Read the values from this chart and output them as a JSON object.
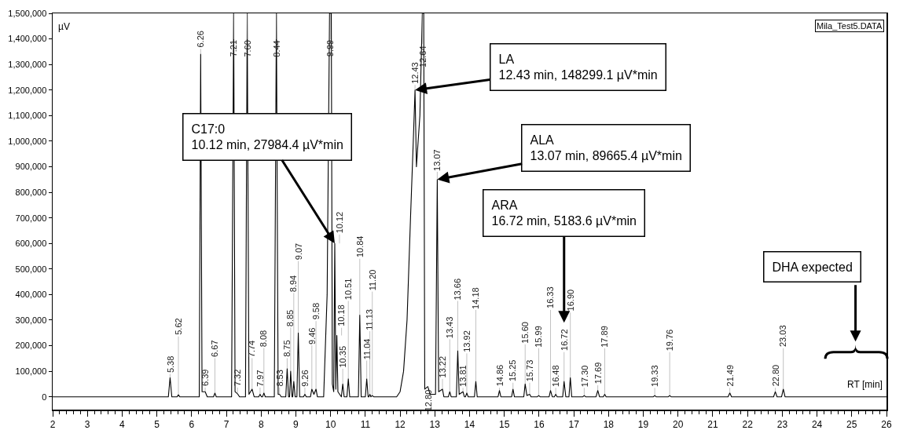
{
  "chart_data": {
    "type": "line",
    "xlabel": "RT [min]",
    "ylabel": "µV",
    "annotations": [
      "Mila_Test5.DATA",
      {
        "text": "C17:0\n10.12 min, 27984.4 µV*min",
        "x": 10.12,
        "y": 600000
      },
      {
        "text": "LA\n12.43 min, 148299.1 µV*min",
        "x": 12.43,
        "y": 1200000
      },
      {
        "text": "ALA\n13.07 min, 89665.4 µV*min",
        "x": 13.07,
        "y": 850000
      },
      {
        "text": "ARA\n16.72 min, 5183.6 µV*min",
        "x": 16.72,
        "y": 60000
      },
      "DHA expected",
      {
        "text": "5.38",
        "x": 5.38,
        "y": 75000
      },
      {
        "text": "5.62",
        "x": 5.62,
        "y": 8000
      },
      {
        "text": "6.26",
        "x": 6.26,
        "y": 1340000
      },
      {
        "text": "6.39",
        "x": 6.39,
        "y": 20000
      },
      {
        "text": "6.67",
        "x": 6.67,
        "y": 15000
      },
      {
        "text": "7.21",
        "x": 7.21,
        "y": 1500000
      },
      {
        "text": "7.32",
        "x": 7.32,
        "y": 12000
      },
      {
        "text": "7.60",
        "x": 7.6,
        "y": 1500000
      },
      {
        "text": "7.74",
        "x": 7.74,
        "y": 30000
      },
      {
        "text": "7.97",
        "x": 7.97,
        "y": 10000
      },
      {
        "text": "8.08",
        "x": 8.08,
        "y": 15000
      },
      {
        "text": "8.44",
        "x": 8.44,
        "y": 1500000
      },
      {
        "text": "8.53",
        "x": 8.53,
        "y": 10000
      },
      {
        "text": "8.75",
        "x": 8.75,
        "y": 110000
      },
      {
        "text": "8.85",
        "x": 8.85,
        "y": 100000
      },
      {
        "text": "8.94",
        "x": 8.94,
        "y": 60000
      },
      {
        "text": "9.07",
        "x": 9.07,
        "y": 250000
      },
      {
        "text": "9.26",
        "x": 9.26,
        "y": 10000
      },
      {
        "text": "9.46",
        "x": 9.46,
        "y": 30000
      },
      {
        "text": "9.58",
        "x": 9.58,
        "y": 30000
      },
      {
        "text": "9.99",
        "x": 9.99,
        "y": 1500000
      },
      {
        "text": "10.12",
        "x": 10.12,
        "y": 600000
      },
      {
        "text": "10.18",
        "x": 10.18,
        "y": 240000
      },
      {
        "text": "10.35",
        "x": 10.35,
        "y": 50000
      },
      {
        "text": "10.51",
        "x": 10.51,
        "y": 70000
      },
      {
        "text": "10.84",
        "x": 10.84,
        "y": 320000
      },
      {
        "text": "11.04",
        "x": 11.04,
        "y": 70000
      },
      {
        "text": "11.13",
        "x": 11.13,
        "y": 10000
      },
      {
        "text": "11.20",
        "x": 11.2,
        "y": 5000
      },
      {
        "text": "12.43",
        "x": 12.43,
        "y": 1200000
      },
      {
        "text": "12.64",
        "x": 12.64,
        "y": 1500000
      },
      {
        "text": "12.80",
        "x": 12.8,
        "y": 40000
      },
      {
        "text": "13.07",
        "x": 13.07,
        "y": 850000
      },
      {
        "text": "13.22",
        "x": 13.22,
        "y": 30000
      },
      {
        "text": "13.43",
        "x": 13.43,
        "y": 20000
      },
      {
        "text": "13.66",
        "x": 13.66,
        "y": 180000
      },
      {
        "text": "13.81",
        "x": 13.81,
        "y": 20000
      },
      {
        "text": "13.92",
        "x": 13.92,
        "y": 15000
      },
      {
        "text": "14.18",
        "x": 14.18,
        "y": 60000
      },
      {
        "text": "14.86",
        "x": 14.86,
        "y": 25000
      },
      {
        "text": "15.25",
        "x": 15.25,
        "y": 30000
      },
      {
        "text": "15.60",
        "x": 15.6,
        "y": 50000
      },
      {
        "text": "15.73",
        "x": 15.73,
        "y": 10000
      },
      {
        "text": "15.99",
        "x": 15.99,
        "y": 5000
      },
      {
        "text": "16.33",
        "x": 16.33,
        "y": 25000
      },
      {
        "text": "16.48",
        "x": 16.48,
        "y": 10000
      },
      {
        "text": "16.72",
        "x": 16.72,
        "y": 60000
      },
      {
        "text": "16.90",
        "x": 16.9,
        "y": 75000
      },
      {
        "text": "17.30",
        "x": 17.3,
        "y": 5000
      },
      {
        "text": "17.69",
        "x": 17.69,
        "y": 25000
      },
      {
        "text": "17.89",
        "x": 17.89,
        "y": 10000
      },
      {
        "text": "19.33",
        "x": 19.33,
        "y": 5000
      },
      {
        "text": "19.76",
        "x": 19.76,
        "y": 5000
      },
      {
        "text": "21.49",
        "x": 21.49,
        "y": 15000
      },
      {
        "text": "22.80",
        "x": 22.8,
        "y": 20000
      },
      {
        "text": "23.03",
        "x": 23.03,
        "y": 30000
      }
    ],
    "x": [
      2,
      5.33,
      5.38,
      5.43,
      5.58,
      5.62,
      5.66,
      6.22,
      6.26,
      6.3,
      6.39,
      6.45,
      6.63,
      6.67,
      6.71,
      7.15,
      7.21,
      7.25,
      7.32,
      7.38,
      7.55,
      7.6,
      7.65,
      7.74,
      7.8,
      7.93,
      7.97,
      8.01,
      8.04,
      8.08,
      8.12,
      8.38,
      8.44,
      8.49,
      8.53,
      8.58,
      8.71,
      8.75,
      8.79,
      8.82,
      8.85,
      8.89,
      8.91,
      8.94,
      8.98,
      9.03,
      9.07,
      9.11,
      9.22,
      9.26,
      9.3,
      9.42,
      9.46,
      9.52,
      9.58,
      9.62,
      9.8,
      9.9,
      9.97,
      9.99,
      10.02,
      10.05,
      10.09,
      10.12,
      10.15,
      10.18,
      10.21,
      10.31,
      10.35,
      10.39,
      10.47,
      10.51,
      10.55,
      10.8,
      10.84,
      10.88,
      11,
      11.04,
      11.08,
      11.1,
      11.13,
      11.16,
      11.2,
      11.24,
      11.9,
      12,
      12.1,
      12.2,
      12.3,
      12.38,
      12.43,
      12.47,
      12.57,
      12.64,
      12.68,
      12.71,
      12.8,
      12.86,
      13.02,
      13.07,
      13.11,
      13.22,
      13.26,
      13.39,
      13.43,
      13.47,
      13.62,
      13.66,
      13.7,
      13.81,
      13.85,
      13.88,
      13.92,
      13.96,
      14.14,
      14.18,
      14.22,
      14.82,
      14.86,
      14.9,
      15.21,
      15.25,
      15.29,
      15.56,
      15.6,
      15.65,
      15.73,
      15.77,
      15.95,
      15.99,
      16.03,
      16.29,
      16.33,
      16.38,
      16.44,
      16.48,
      16.52,
      16.68,
      16.72,
      16.77,
      16.86,
      16.9,
      16.94,
      17.26,
      17.3,
      17.34,
      17.64,
      17.69,
      17.74,
      17.85,
      17.89,
      17.93,
      19.29,
      19.33,
      19.37,
      19.72,
      19.76,
      19.8,
      21.44,
      21.49,
      21.54,
      22.75,
      22.8,
      22.85,
      22.98,
      23.03,
      23.08,
      26
    ],
    "series": [
      {
        "color": "#000000",
        "values": [
          0,
          0,
          75000,
          0,
          0,
          8000,
          0,
          0,
          1340000,
          20000,
          20000,
          0,
          0,
          15000,
          0,
          0,
          1500000,
          20000,
          12000,
          0,
          0,
          1500000,
          10000,
          30000,
          0,
          0,
          10000,
          0,
          0,
          15000,
          0,
          0,
          1500000,
          10000,
          10000,
          0,
          0,
          110000,
          0,
          0,
          100000,
          0,
          0,
          60000,
          0,
          0,
          250000,
          0,
          0,
          10000,
          0,
          0,
          30000,
          10000,
          30000,
          0,
          0,
          400000,
          1500000,
          1500000,
          1500000,
          50000,
          20000,
          600000,
          30000,
          240000,
          20000,
          0,
          50000,
          0,
          0,
          70000,
          0,
          0,
          320000,
          0,
          0,
          70000,
          0,
          0,
          10000,
          0,
          5000,
          0,
          0,
          20000,
          100000,
          300000,
          700000,
          1000000,
          1200000,
          900000,
          1100000,
          1500000,
          1500000,
          30000,
          40000,
          10000,
          10000,
          850000,
          20000,
          30000,
          0,
          0,
          20000,
          0,
          0,
          180000,
          10000,
          20000,
          0,
          0,
          15000,
          0,
          0,
          60000,
          0,
          0,
          25000,
          0,
          0,
          30000,
          0,
          0,
          50000,
          5000,
          10000,
          0,
          0,
          5000,
          0,
          0,
          25000,
          0,
          0,
          10000,
          0,
          0,
          60000,
          0,
          0,
          75000,
          0,
          0,
          5000,
          0,
          0,
          25000,
          0,
          0,
          10000,
          0,
          0,
          5000,
          0,
          0,
          5000,
          0,
          0,
          15000,
          0,
          0,
          20000,
          0,
          0,
          30000,
          0,
          0
        ]
      }
    ],
    "xlim": [
      2,
      26
    ],
    "xticks": [
      2,
      3,
      4,
      5,
      6,
      7,
      8,
      9,
      10,
      11,
      12,
      13,
      14,
      15,
      16,
      17,
      18,
      19,
      20,
      21,
      22,
      23,
      24,
      25,
      26
    ],
    "ylim": [
      -50000,
      1500000
    ],
    "yticks": [
      0,
      {
        "value": 100000,
        "label": "100,000"
      },
      {
        "value": 200000,
        "label": "200,000"
      },
      {
        "value": 300000,
        "label": "300,000"
      },
      {
        "value": 400000,
        "label": "400,000"
      },
      {
        "value": 500000,
        "label": "500,000"
      },
      {
        "value": 600000,
        "label": "600,000"
      },
      {
        "value": 700000,
        "label": "700,000"
      },
      {
        "value": 800000,
        "label": "800,000"
      },
      {
        "value": 900000,
        "label": "900,000"
      },
      {
        "value": 1000000,
        "label": "1,000,000"
      },
      {
        "value": 1100000,
        "label": "1,100,000"
      },
      {
        "value": 1200000,
        "label": "1,200,000"
      },
      {
        "value": 1300000,
        "label": "1,300,000"
      },
      {
        "value": 1400000,
        "label": "1,400,000"
      },
      {
        "value": 1500000,
        "label": "1,500,000"
      }
    ],
    "grid": false,
    "marker": "none",
    "line_style": "solid"
  }
}
